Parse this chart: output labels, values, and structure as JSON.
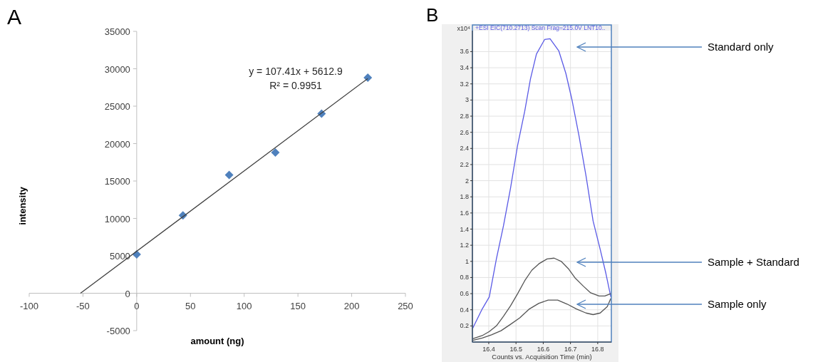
{
  "chart_data": [
    {
      "type": "scatter",
      "title": "A",
      "xlabel": "amount (ng)",
      "ylabel": "intensity",
      "xlim": [
        -100,
        250
      ],
      "ylim": [
        -5000,
        35000
      ],
      "xticks": [
        -100,
        -50,
        0,
        50,
        100,
        150,
        200,
        250
      ],
      "yticks": [
        -5000,
        0,
        5000,
        10000,
        15000,
        20000,
        25000,
        30000,
        35000
      ],
      "grid": false,
      "annotations": [
        "y = 107.41x + 5612.9",
        "R² = 0.9951"
      ],
      "series": [
        {
          "type": "scatter",
          "marker": "diamond",
          "color": "#4f81bd",
          "x": [
            0,
            43,
            86,
            129,
            172,
            215
          ],
          "values": [
            5200,
            10400,
            15800,
            18800,
            24000,
            28800
          ]
        },
        {
          "type": "line",
          "marker": "none",
          "color": "#404040",
          "x": [
            -52.3,
            215
          ],
          "values": [
            0,
            28700
          ]
        }
      ]
    },
    {
      "type": "line",
      "title": "B",
      "subtitle": "+ESI EIC(710.2713) Scan Frag=215.0V LNT10..",
      "xlabel": "Counts vs. Acquisition Time (min)",
      "annotations": [
        "x10⁴"
      ],
      "xlim": [
        16.34,
        16.85
      ],
      "ylim": [
        0,
        3.86
      ],
      "xticks": [
        16.4,
        16.5,
        16.6,
        16.7,
        16.8
      ],
      "yticks": [
        0.2,
        0.4,
        0.6,
        0.8,
        1,
        1.2,
        1.4,
        1.6,
        1.8,
        2,
        2.2,
        2.4,
        2.6,
        2.8,
        3,
        3.2,
        3.4,
        3.6
      ],
      "grid": true,
      "marker": "none",
      "series": [
        {
          "name": "Standard only",
          "color": "#5a5ae6",
          "x": [
            16.341,
            16.376,
            16.402,
            16.428,
            16.454,
            16.48,
            16.506,
            16.532,
            16.553,
            16.575,
            16.605,
            16.625,
            16.657,
            16.683,
            16.705,
            16.731,
            16.757,
            16.783,
            16.809,
            16.83,
            16.848
          ],
          "values": [
            0.17,
            0.41,
            0.56,
            1.03,
            1.44,
            1.91,
            2.44,
            2.86,
            3.26,
            3.57,
            3.75,
            3.76,
            3.61,
            3.33,
            3.01,
            2.56,
            2.06,
            1.5,
            1.15,
            0.85,
            0.56
          ]
        },
        {
          "name": "Sample + Standard",
          "color": "#555555",
          "x": [
            16.341,
            16.376,
            16.402,
            16.428,
            16.454,
            16.48,
            16.506,
            16.532,
            16.558,
            16.584,
            16.614,
            16.64,
            16.666,
            16.692,
            16.718,
            16.748,
            16.774,
            16.805,
            16.826,
            16.848
          ],
          "values": [
            0.04,
            0.08,
            0.13,
            0.2,
            0.32,
            0.45,
            0.6,
            0.76,
            0.89,
            0.97,
            1.03,
            1.04,
            1.0,
            0.91,
            0.79,
            0.69,
            0.61,
            0.57,
            0.57,
            0.6
          ]
        },
        {
          "name": "Sample only",
          "color": "#555555",
          "x": [
            16.341,
            16.376,
            16.41,
            16.445,
            16.48,
            16.514,
            16.549,
            16.584,
            16.618,
            16.653,
            16.688,
            16.722,
            16.757,
            16.783,
            16.809,
            16.835,
            16.848
          ],
          "values": [
            0.02,
            0.05,
            0.09,
            0.14,
            0.22,
            0.3,
            0.41,
            0.48,
            0.52,
            0.52,
            0.47,
            0.41,
            0.36,
            0.34,
            0.36,
            0.44,
            0.54
          ]
        }
      ]
    }
  ]
}
